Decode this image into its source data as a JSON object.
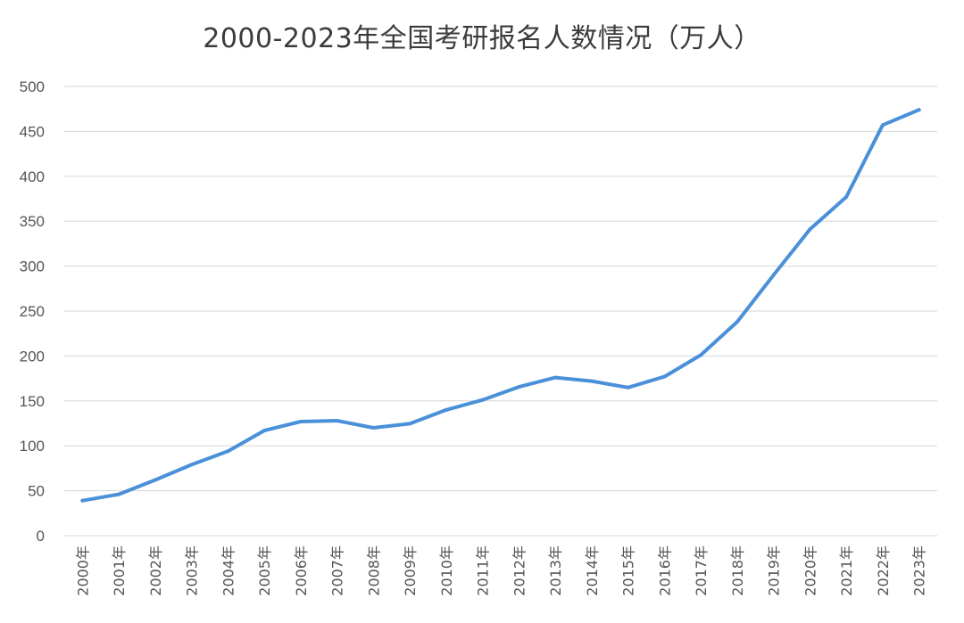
{
  "chart_data": {
    "type": "line",
    "title": "2000-2023年全国考研报名人数情况（万人）",
    "xlabel": "",
    "ylabel": "",
    "categories": [
      "2000年",
      "2001年",
      "2002年",
      "2003年",
      "2004年",
      "2005年",
      "2006年",
      "2007年",
      "2008年",
      "2009年",
      "2010年",
      "2011年",
      "2012年",
      "2013年",
      "2014年",
      "2015年",
      "2016年",
      "2017年",
      "2018年",
      "2019年",
      "2020年",
      "2021年",
      "2022年",
      "2023年"
    ],
    "series": [
      {
        "values": [
          39,
          46,
          62,
          79,
          94,
          117,
          127,
          128,
          120,
          124.6,
          140,
          151.1,
          165.6,
          176,
          172,
          164.9,
          177,
          201,
          238,
          290,
          341,
          377,
          457,
          474
        ],
        "color": "#4a90d9"
      }
    ],
    "ylim": [
      0,
      500
    ],
    "yticks": [
      "0",
      "50",
      "100",
      "150",
      "200",
      "250",
      "300",
      "350",
      "400",
      "450",
      "500"
    ],
    "grid": true,
    "legend": "none"
  }
}
